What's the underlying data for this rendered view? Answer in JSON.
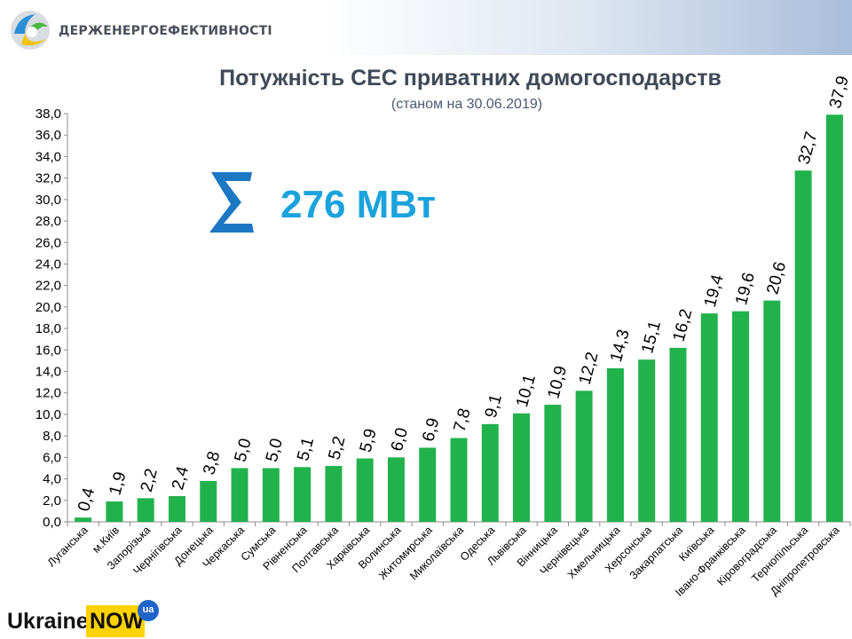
{
  "header": {
    "org_name": "ДЕРЖЕНЕРГОЕФЕКТИВНОСТІ",
    "logo_icon": "energy-efficiency-logo-icon"
  },
  "summary": {
    "symbol": "Σ",
    "value": "276 МВт",
    "color": "#1aa3dc"
  },
  "footer": {
    "logo_word": "Ukraine",
    "logo_highlight": "NOW",
    "logo_badge": "ua",
    "highlight_color": "#ffd200"
  },
  "chart_data": {
    "type": "bar",
    "title": "Потужність СЕС приватних домогосподарств",
    "subtitle": "(станом на 30.06.2019)",
    "xlabel": "",
    "ylabel": "",
    "ylim": [
      0,
      38
    ],
    "ytick_step": 2,
    "ytick_labels": [
      "0,0",
      "2,0",
      "4,0",
      "6,0",
      "8,0",
      "10,0",
      "12,0",
      "14,0",
      "16,0",
      "18,0",
      "20,0",
      "22,0",
      "24,0",
      "26,0",
      "28,0",
      "30,0",
      "32,0",
      "34,0",
      "36,0",
      "38,0"
    ],
    "grid": false,
    "legend": "none",
    "bar_color": "#22b24c",
    "categories": [
      "Луганська",
      "м.Київ",
      "Запорізька",
      "Чернігівська",
      "Донецька",
      "Черкаська",
      "Сумська",
      "Рівненська",
      "Полтавська",
      "Харківська",
      "Волинська",
      "Житомирська",
      "Миколаївська",
      "Одеська",
      "Львівська",
      "Вінницька",
      "Чернівецька",
      "Хмельницька",
      "Херсонська",
      "Закарпатська",
      "Київська",
      "Івано-Франківська",
      "Кіровоградська",
      "Тернопільська",
      "Дніпропетровська"
    ],
    "values": [
      0.4,
      1.9,
      2.2,
      2.4,
      3.8,
      5.0,
      5.0,
      5.1,
      5.2,
      5.9,
      6.0,
      6.9,
      7.8,
      9.1,
      10.1,
      10.9,
      12.2,
      14.3,
      15.1,
      16.2,
      19.4,
      19.6,
      20.6,
      32.7,
      37.9
    ],
    "value_labels": [
      "0,4",
      "1,9",
      "2,2",
      "2,4",
      "3,8",
      "5,0",
      "5,0",
      "5,1",
      "5,2",
      "5,9",
      "6,0",
      "6,9",
      "7,8",
      "9,1",
      "10,1",
      "10,9",
      "12,2",
      "14,3",
      "15,1",
      "16,2",
      "19,4",
      "19,6",
      "20,6",
      "32,7",
      "37,9"
    ]
  }
}
